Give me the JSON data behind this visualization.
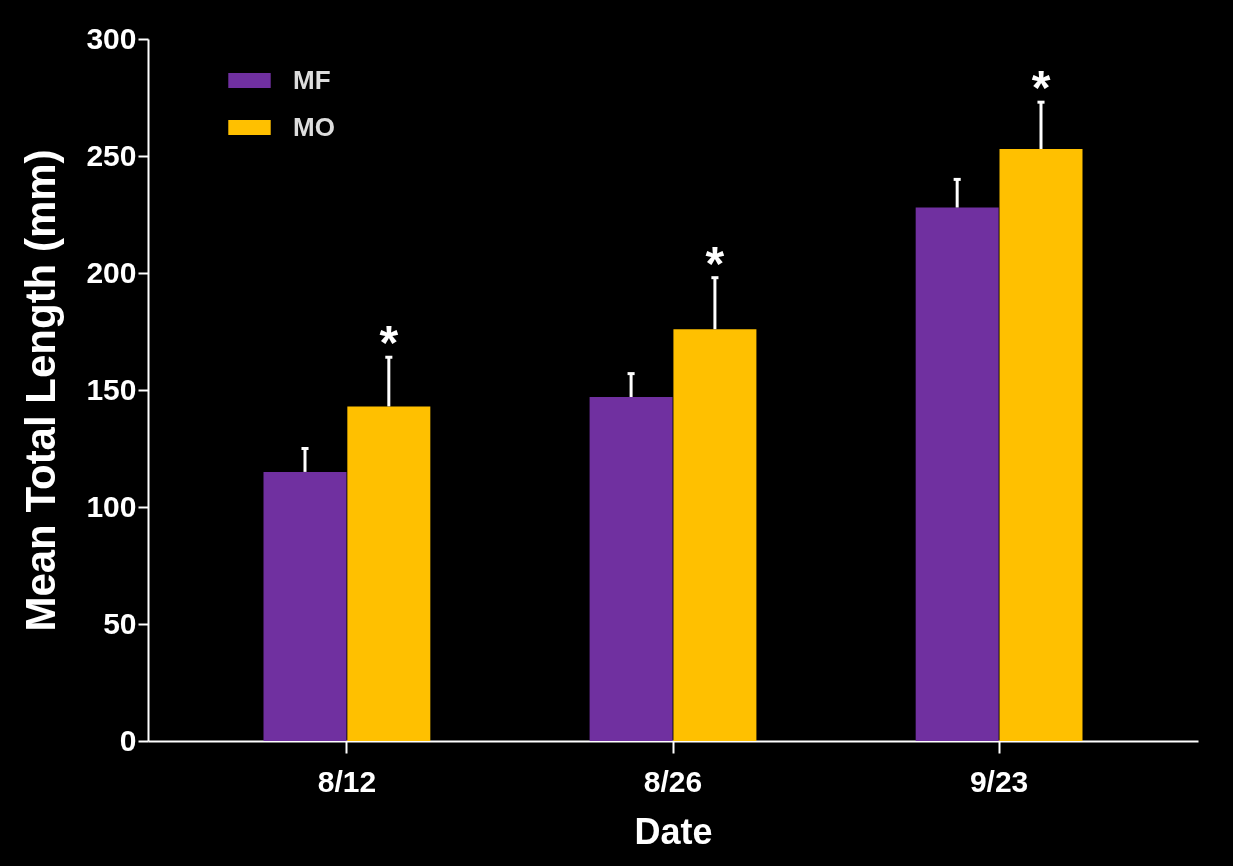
{
  "chart_data": {
    "type": "bar",
    "xlabel": "Date",
    "ylabel": "Mean Total Length (mm)",
    "categories": [
      "8/12",
      "8/26",
      "9/23"
    ],
    "series": [
      {
        "name": "MF",
        "color": "#7030a0",
        "values": [
          115,
          147,
          228
        ],
        "errors": [
          [
            115,
            125
          ],
          [
            147,
            157
          ],
          [
            228,
            240
          ]
        ]
      },
      {
        "name": "MO",
        "color": "#ffc000",
        "values": [
          143,
          176,
          253
        ],
        "errors": [
          [
            143,
            164
          ],
          [
            176,
            198
          ],
          [
            253,
            273
          ]
        ]
      }
    ],
    "ylim": [
      0,
      300
    ],
    "yticks": [
      0,
      50,
      100,
      150,
      200,
      250,
      300
    ],
    "grid": false,
    "legend": "top left",
    "annotations": [
      {
        "text": "*",
        "x": "8/12",
        "y": 143
      },
      {
        "text": "*",
        "x": "8/26",
        "y": 176
      },
      {
        "text": "*",
        "x": "9/23",
        "y": 253
      }
    ]
  }
}
